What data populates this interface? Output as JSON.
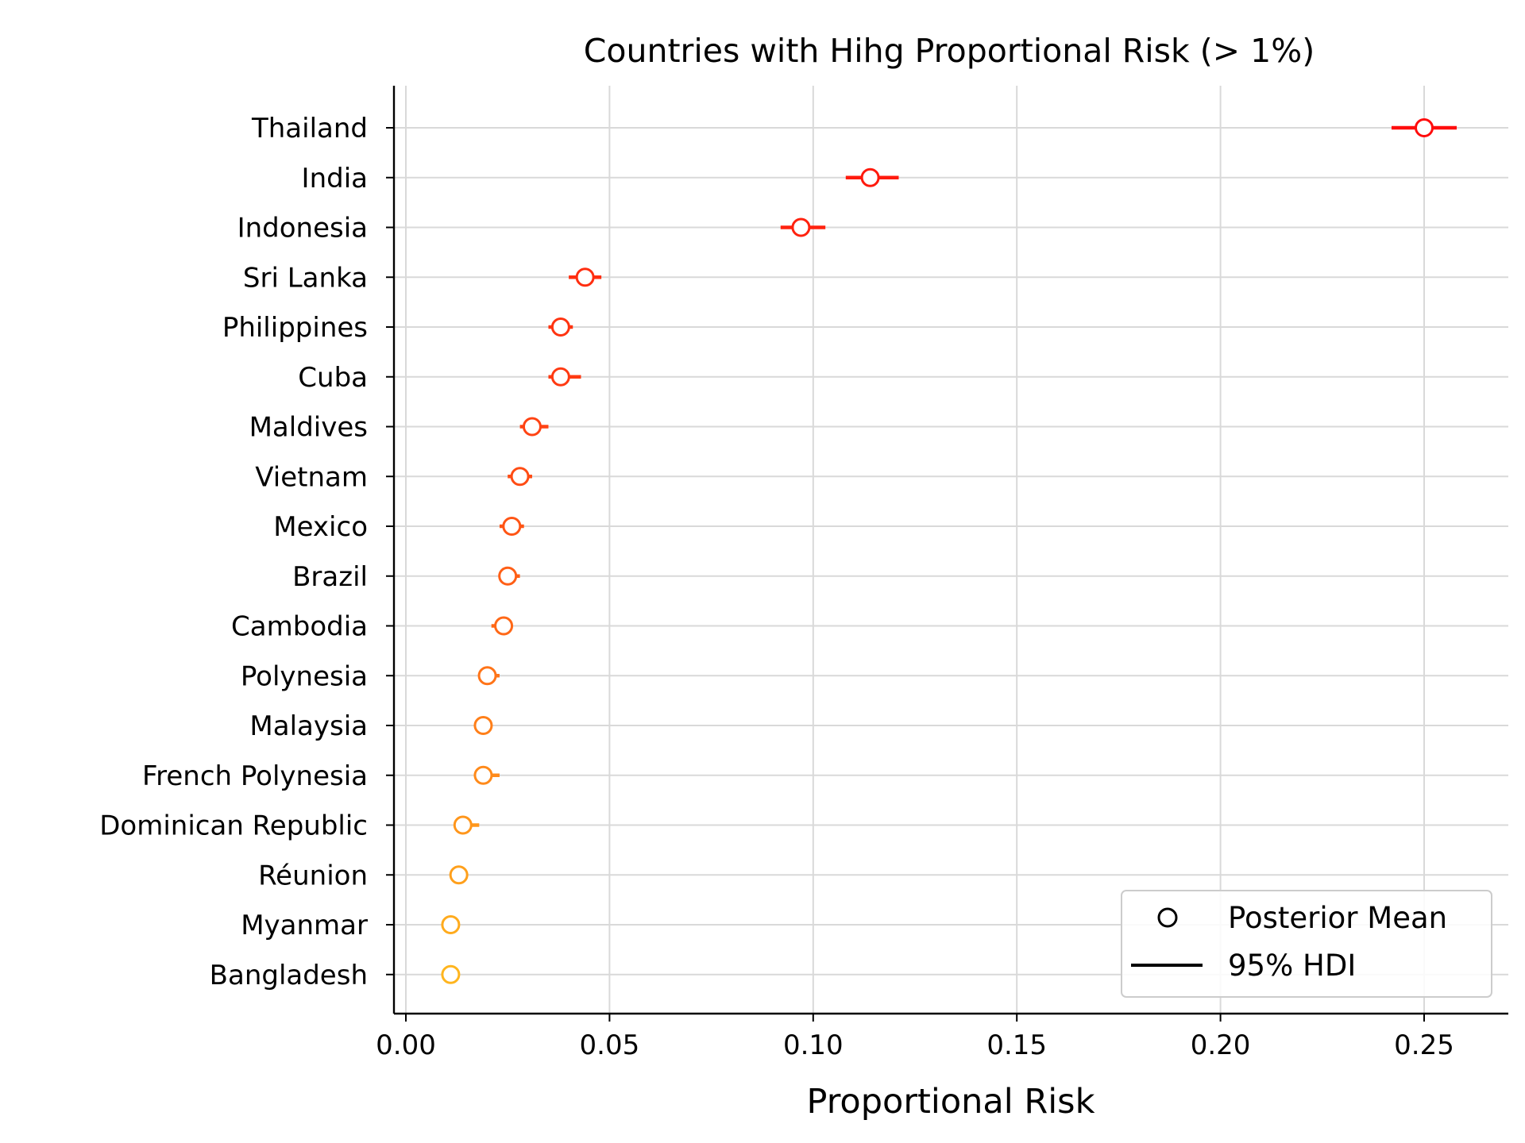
{
  "chart_data": {
    "type": "scatter",
    "title": "Countries with Hihg Proportional Risk (> 1%)",
    "xlabel": "Proportional Risk",
    "ylabel": "",
    "xlim": [
      -0.003,
      0.27
    ],
    "xticks": [
      0.0,
      0.05,
      0.1,
      0.15,
      0.2,
      0.25
    ],
    "xtick_labels": [
      "0.00",
      "0.05",
      "0.10",
      "0.15",
      "0.20",
      "0.25"
    ],
    "grid": true,
    "legend": {
      "placement": "lower-right",
      "entries": [
        {
          "label": "Posterior Mean",
          "marker": "open-circle"
        },
        {
          "label": "95% HDI",
          "marker": "line"
        }
      ]
    },
    "points": [
      {
        "country": "Thailand",
        "mean": 0.25,
        "hdi": [
          0.242,
          0.258
        ],
        "color": "#ff0d0d"
      },
      {
        "country": "India",
        "mean": 0.114,
        "hdi": [
          0.108,
          0.121
        ],
        "color": "#ff1a0d"
      },
      {
        "country": "Indonesia",
        "mean": 0.097,
        "hdi": [
          0.092,
          0.103
        ],
        "color": "#ff220f"
      },
      {
        "country": "Sri Lanka",
        "mean": 0.044,
        "hdi": [
          0.04,
          0.048
        ],
        "color": "#ff2e10"
      },
      {
        "country": "Philippines",
        "mean": 0.038,
        "hdi": [
          0.035,
          0.041
        ],
        "color": "#ff3411"
      },
      {
        "country": "Cuba",
        "mean": 0.038,
        "hdi": [
          0.035,
          0.043
        ],
        "color": "#ff3a12"
      },
      {
        "country": "Maldives",
        "mean": 0.031,
        "hdi": [
          0.028,
          0.035
        ],
        "color": "#ff4313"
      },
      {
        "country": "Vietnam",
        "mean": 0.028,
        "hdi": [
          0.025,
          0.031
        ],
        "color": "#ff4c14"
      },
      {
        "country": "Mexico",
        "mean": 0.026,
        "hdi": [
          0.023,
          0.029
        ],
        "color": "#ff5515"
      },
      {
        "country": "Brazil",
        "mean": 0.025,
        "hdi": [
          0.023,
          0.028
        ],
        "color": "#ff5f16"
      },
      {
        "country": "Cambodia",
        "mean": 0.024,
        "hdi": [
          0.021,
          0.026
        ],
        "color": "#ff6817"
      },
      {
        "country": "Polynesia",
        "mean": 0.02,
        "hdi": [
          0.018,
          0.023
        ],
        "color": "#ff7418"
      },
      {
        "country": "Malaysia",
        "mean": 0.019,
        "hdi": [
          0.017,
          0.021
        ],
        "color": "#ff7f19"
      },
      {
        "country": "French Polynesia",
        "mean": 0.019,
        "hdi": [
          0.017,
          0.023
        ],
        "color": "#ff8a1a"
      },
      {
        "country": "Dominican Republic",
        "mean": 0.014,
        "hdi": [
          0.012,
          0.018
        ],
        "color": "#ff961b"
      },
      {
        "country": "Réunion",
        "mean": 0.013,
        "hdi": [
          0.011,
          0.015
        ],
        "color": "#ffa01c"
      },
      {
        "country": "Myanmar",
        "mean": 0.011,
        "hdi": [
          0.01,
          0.012
        ],
        "color": "#ffab1d"
      },
      {
        "country": "Bangladesh",
        "mean": 0.011,
        "hdi": [
          0.01,
          0.012
        ],
        "color": "#ffb51e"
      }
    ]
  }
}
